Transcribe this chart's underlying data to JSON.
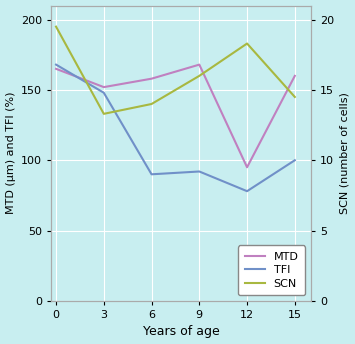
{
  "x": [
    0,
    3,
    6,
    9,
    12,
    15
  ],
  "MTD": [
    165,
    152,
    158,
    168,
    95,
    160
  ],
  "TFI": [
    168,
    148,
    90,
    92,
    78,
    100
  ],
  "SCN": [
    19.5,
    13.3,
    14.0,
    16.0,
    18.3,
    14.5
  ],
  "MTD_color": "#c080c0",
  "TFI_color": "#7090c8",
  "SCN_color": "#a8b840",
  "bg_color": "#c8eef0",
  "ylabel_left": "MTD (μm) and TFI (%)",
  "ylabel_right": "SCN (number of cells)",
  "xlabel": "Years of age",
  "ylim_left": [
    0,
    210
  ],
  "ylim_right": [
    0,
    21
  ],
  "yticks_left": [
    0,
    50,
    100,
    150,
    200
  ],
  "yticks_right": [
    0,
    5,
    10,
    15,
    20
  ],
  "xticks": [
    0,
    3,
    6,
    9,
    12,
    15
  ],
  "legend_labels": [
    "MTD",
    "TFI",
    "SCN"
  ],
  "grid_color": "#ffffff",
  "spine_color": "#aaaaaa"
}
